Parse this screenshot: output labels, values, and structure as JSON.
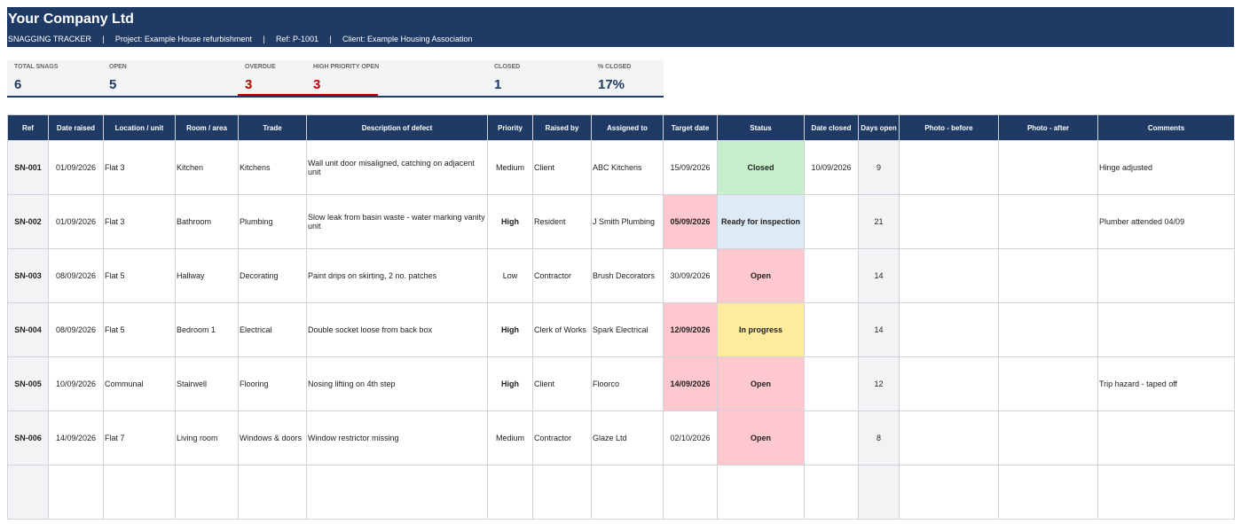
{
  "header": {
    "company": "Your Company Ltd",
    "tracker": "SNAGGING TRACKER",
    "project": "Project: Example House refurbishment",
    "ref": "Ref: P-1001",
    "client": "Client: Example Housing Association",
    "separator": "|"
  },
  "kpis": {
    "total": {
      "label": "TOTAL SNAGS",
      "value": "6"
    },
    "open": {
      "label": "OPEN",
      "value": "5"
    },
    "overdue": {
      "label": "OVERDUE",
      "value": "3"
    },
    "high_open": {
      "label": "HIGH PRIORITY OPEN",
      "value": "3"
    },
    "closed": {
      "label": "CLOSED",
      "value": "1"
    },
    "pct_closed": {
      "label": "% CLOSED",
      "value": "17%"
    }
  },
  "table": {
    "headers": [
      "Ref",
      "Date raised",
      "Location / unit",
      "Room / area",
      "Trade",
      "Description of defect",
      "Priority",
      "Raised by",
      "Assigned to",
      "Target date",
      "Status",
      "Date closed",
      "Days open",
      "Photo - before",
      "Photo - after",
      "Comments"
    ],
    "rows": [
      [
        "SN-001",
        "01/09/2026",
        "Flat 3",
        "Kitchen",
        "Kitchens",
        "Wall unit door misaligned, catching on adjacent unit",
        "Medium",
        "Client",
        "ABC Kitchens",
        "15/09/2026",
        "Closed",
        "10/09/2026",
        "9",
        "",
        "",
        "Hinge adjusted"
      ],
      [
        "SN-002",
        "01/09/2026",
        "Flat 3",
        "Bathroom",
        "Plumbing",
        "Slow leak from basin waste - water marking vanity unit",
        "High",
        "Resident",
        "J Smith Plumbing",
        "05/09/2026",
        "Ready for inspection",
        "",
        "21",
        "",
        "",
        "Plumber attended 04/09"
      ],
      [
        "SN-003",
        "08/09/2026",
        "Flat 5",
        "Hallway",
        "Decorating",
        "Paint drips on skirting, 2 no. patches",
        "Low",
        "Contractor",
        "Brush Decorators",
        "30/09/2026",
        "Open",
        "",
        "14",
        "",
        "",
        ""
      ],
      [
        "SN-004",
        "08/09/2026",
        "Flat 5",
        "Bedroom 1",
        "Electrical",
        "Double socket loose from back box",
        "High",
        "Clerk of Works",
        "Spark Electrical",
        "12/09/2026",
        "In progress",
        "",
        "14",
        "",
        "",
        ""
      ],
      [
        "SN-005",
        "10/09/2026",
        "Communal",
        "Stairwell",
        "Flooring",
        "Nosing lifting on 4th step",
        "High",
        "Client",
        "Floorco",
        "14/09/2026",
        "Open",
        "",
        "12",
        "",
        "",
        "Trip hazard - taped off"
      ],
      [
        "SN-006",
        "14/09/2026",
        "Flat 7",
        "Living room",
        "Windows & doors",
        "Window restrictor missing",
        "Medium",
        "Contractor",
        "Glaze Ltd",
        "02/10/2026",
        "Open",
        "",
        "8",
        "",
        "",
        ""
      ],
      [
        "",
        "",
        "",
        "",
        "",
        "",
        "",
        "",
        "",
        "",
        "",
        "",
        "",
        "",
        "",
        ""
      ]
    ],
    "overdue_flags": [
      false,
      true,
      false,
      true,
      true,
      false,
      false
    ]
  },
  "colors": {
    "header_bg": "#1f3a64",
    "high_priority": "#c00000",
    "overdue_bg": "#ffc7ce",
    "closed_bg": "#c6efce",
    "inspection_bg": "#ddebf7",
    "in_progress_bg": "#ffeb9c"
  }
}
